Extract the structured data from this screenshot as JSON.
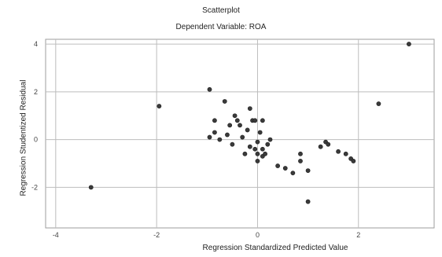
{
  "chart_data": {
    "type": "scatter",
    "title": "Scatterplot",
    "subtitle": "Dependent Variable: ROA",
    "xlabel": "Regression Standardized Predicted Value",
    "ylabel": "Regression Studentized Residual",
    "xlim": [
      -4.2,
      3.5
    ],
    "ylim": [
      -3.7,
      4.2
    ],
    "xticks": [
      -4,
      -2,
      0,
      2
    ],
    "yticks": [
      -2,
      0,
      2,
      4
    ],
    "grid": true,
    "points": [
      {
        "x": -3.3,
        "y": -2.0
      },
      {
        "x": -1.95,
        "y": 1.4
      },
      {
        "x": -0.95,
        "y": 2.1
      },
      {
        "x": -0.95,
        "y": 0.1
      },
      {
        "x": -0.85,
        "y": 0.8
      },
      {
        "x": -0.85,
        "y": 0.3
      },
      {
        "x": -0.75,
        "y": 0.0
      },
      {
        "x": -0.65,
        "y": 1.6
      },
      {
        "x": -0.6,
        "y": 0.2
      },
      {
        "x": -0.55,
        "y": 0.6
      },
      {
        "x": -0.5,
        "y": -0.2
      },
      {
        "x": -0.45,
        "y": 1.0
      },
      {
        "x": -0.4,
        "y": 0.8
      },
      {
        "x": -0.35,
        "y": 0.6
      },
      {
        "x": -0.3,
        "y": 0.1
      },
      {
        "x": -0.25,
        "y": -0.6
      },
      {
        "x": -0.2,
        "y": 0.4
      },
      {
        "x": -0.15,
        "y": 1.3
      },
      {
        "x": -0.15,
        "y": -0.3
      },
      {
        "x": -0.1,
        "y": 0.8
      },
      {
        "x": -0.05,
        "y": -0.4
      },
      {
        "x": -0.05,
        "y": 0.8
      },
      {
        "x": 0.0,
        "y": -0.6
      },
      {
        "x": 0.0,
        "y": -0.1
      },
      {
        "x": 0.05,
        "y": 0.3
      },
      {
        "x": 0.0,
        "y": -0.9
      },
      {
        "x": 0.1,
        "y": -0.7
      },
      {
        "x": 0.1,
        "y": -0.4
      },
      {
        "x": 0.1,
        "y": 0.8
      },
      {
        "x": 0.15,
        "y": -0.6
      },
      {
        "x": 0.2,
        "y": -0.2
      },
      {
        "x": 0.25,
        "y": 0.0
      },
      {
        "x": 0.4,
        "y": -1.1
      },
      {
        "x": 0.55,
        "y": -1.2
      },
      {
        "x": 0.7,
        "y": -1.4
      },
      {
        "x": 0.85,
        "y": -0.6
      },
      {
        "x": 0.85,
        "y": -0.9
      },
      {
        "x": 1.0,
        "y": -1.3
      },
      {
        "x": 1.0,
        "y": -2.6
      },
      {
        "x": 1.25,
        "y": -0.3
      },
      {
        "x": 1.35,
        "y": -0.1
      },
      {
        "x": 1.4,
        "y": -0.2
      },
      {
        "x": 1.6,
        "y": -0.5
      },
      {
        "x": 1.75,
        "y": -0.6
      },
      {
        "x": 1.85,
        "y": -0.8
      },
      {
        "x": 1.9,
        "y": -0.9
      },
      {
        "x": 2.4,
        "y": 1.5
      },
      {
        "x": 3.0,
        "y": 4.0
      }
    ],
    "colors": {
      "point": "#3a3a3a",
      "grid": "#bdbdbd",
      "axis": "#9e9e9e",
      "tick_text": "#444444"
    }
  }
}
